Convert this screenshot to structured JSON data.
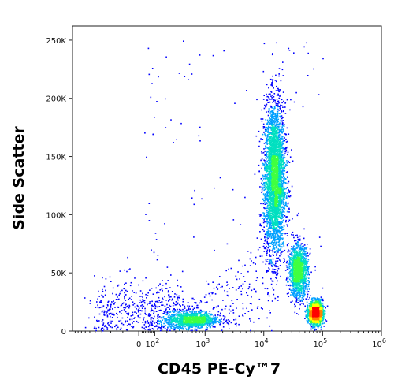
{
  "chart_data": {
    "type": "scatter",
    "xlabel": "CD45 PE-Cy™7",
    "ylabel": "Side Scatter",
    "x_scale": "biexponential",
    "xlim": [
      -1000,
      1000000
    ],
    "ylim": [
      0,
      262144
    ],
    "grid": false,
    "x_ticks": [
      {
        "value": 0,
        "label": "0"
      },
      {
        "value": 100,
        "label": "10",
        "exp": "2"
      },
      {
        "value": 1000,
        "label": "10",
        "exp": "3"
      },
      {
        "value": 10000,
        "label": "10",
        "exp": "4"
      },
      {
        "value": 100000,
        "label": "10",
        "exp": "5"
      },
      {
        "value": 1000000,
        "label": "10",
        "exp": "6"
      }
    ],
    "y_ticks": [
      {
        "value": 0,
        "label": "0"
      },
      {
        "value": 50000,
        "label": "50K"
      },
      {
        "value": 100000,
        "label": "100K"
      },
      {
        "value": 150000,
        "label": "150K"
      },
      {
        "value": 200000,
        "label": "200K"
      },
      {
        "value": 250000,
        "label": "250K"
      }
    ],
    "density_colors": [
      "#0000ff",
      "#00a0ff",
      "#00e0c0",
      "#40ff40",
      "#ffff00",
      "#ff8000",
      "#ff0000"
    ],
    "populations": [
      {
        "x_center": 15000,
        "x_spread_decades": 0.09,
        "y_center": 130000,
        "y_spread": 33000,
        "weight": 0.4
      },
      {
        "x_center": 38000,
        "x_spread_decades": 0.08,
        "y_center": 52000,
        "y_spread": 11000,
        "weight": 0.16
      },
      {
        "x_center": 75000,
        "x_spread_decades": 0.06,
        "y_center": 16000,
        "y_spread": 5000,
        "weight": 0.18
      },
      {
        "x_center": 600,
        "x_spread_decades": 0.22,
        "y_center": 10000,
        "y_spread": 3500,
        "weight": 0.12
      },
      {
        "x_center": 20,
        "x_spread_decades": 0.0,
        "y_center": 18000,
        "y_spread": 16000,
        "weight": 0.06
      }
    ]
  }
}
